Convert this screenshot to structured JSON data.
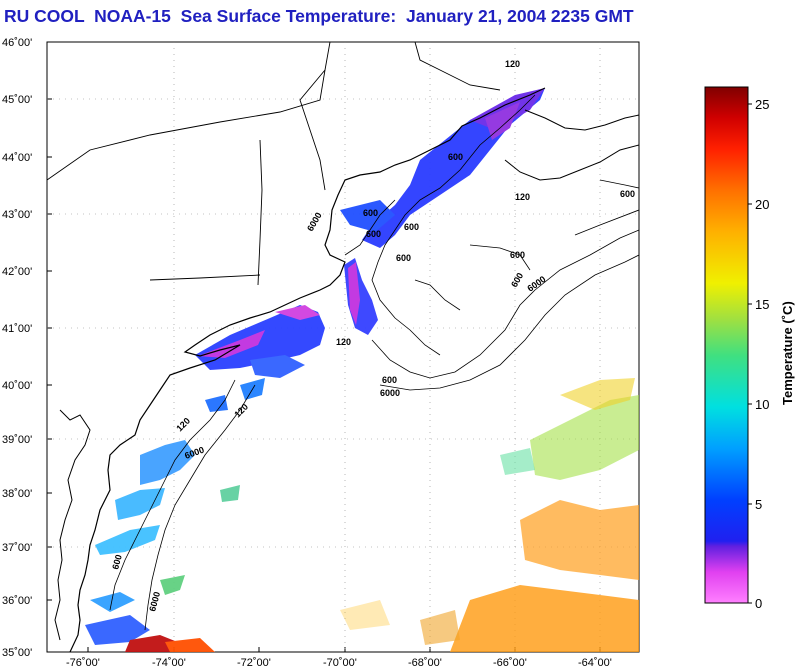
{
  "title": "RU COOL  NOAA-15  Sea Surface Temperature:  January 21, 2004 2235 GMT",
  "lat_labels": [
    "46˚00'",
    "45˚00'",
    "44˚00'",
    "43˚00'",
    "42˚00'",
    "41˚00'",
    "40˚00'",
    "39˚00'",
    "38˚00'",
    "37˚00'",
    "36˚00'",
    "35˚00'"
  ],
  "lon_labels": [
    "-76˚00'",
    "-74˚00'",
    "-72˚00'",
    "-70˚00'",
    "-68˚00'",
    "-66˚00'",
    "-64˚00'"
  ],
  "contour_labels": [
    "120",
    "600",
    "6000",
    "600",
    "600",
    "120",
    "600",
    "6000",
    "600",
    "120",
    "600",
    "6000",
    "600",
    "600",
    "6000",
    "120",
    "600",
    "120",
    "600",
    "6000"
  ],
  "colorbar": {
    "title": "Temperature (˚C)",
    "ticks": [
      "25",
      "20",
      "15",
      "10",
      "5",
      "0"
    ],
    "min": 0,
    "max": 26
  }
}
